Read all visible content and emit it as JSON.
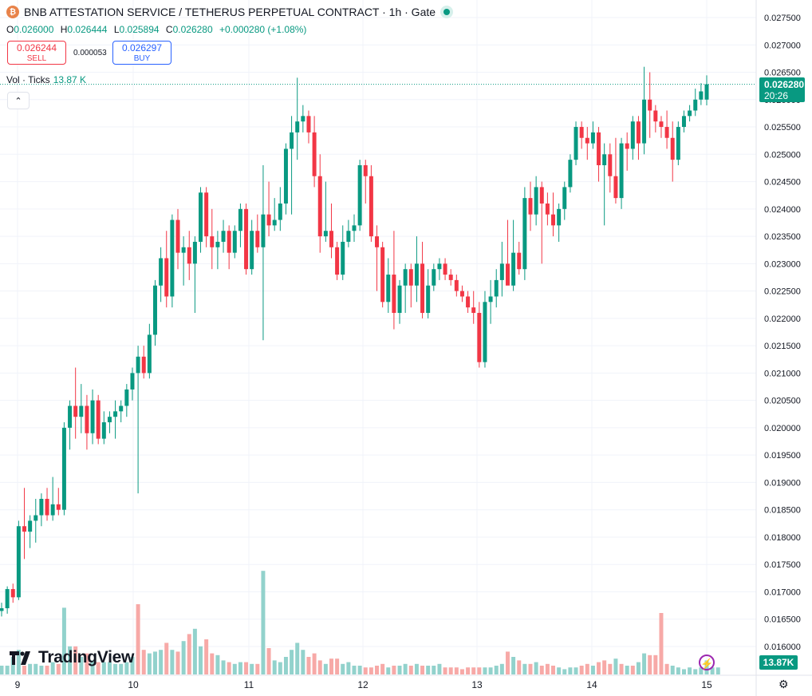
{
  "header": {
    "title": "BNB ATTESTATION SERVICE / TETHERUS PERPETUAL CONTRACT · 1h · Gate",
    "coin_icon": "bnb-coin-icon"
  },
  "ohlc": {
    "o_label": "O",
    "o": "0.026000",
    "h_label": "H",
    "h": "0.026444",
    "l_label": "L",
    "l": "0.025894",
    "c_label": "C",
    "c": "0.026280",
    "change": "+0.000280 (+1.08%)"
  },
  "trade": {
    "sell_price": "0.026244",
    "sell_label": "SELL",
    "spread": "0.000053",
    "buy_price": "0.026297",
    "buy_label": "BUY"
  },
  "volume_legend": {
    "label": "Vol · Ticks",
    "value": "13.87 K"
  },
  "price_tag": {
    "price": "0.026280",
    "countdown": "20:26"
  },
  "volume_tag": "13.87K",
  "brand": "TradingView",
  "colors": {
    "up": "#089981",
    "down": "#f23645",
    "up_vol": "#92d2cc",
    "down_vol": "#f7a9a7",
    "grid": "#f0f3fa"
  },
  "chart_data": {
    "type": "candlestick",
    "y_ticks": [
      "0.027500",
      "0.027000",
      "0.026500",
      "0.026000",
      "0.025500",
      "0.025000",
      "0.024500",
      "0.024000",
      "0.023500",
      "0.023000",
      "0.022500",
      "0.022000",
      "0.021500",
      "0.021000",
      "0.020500",
      "0.020000",
      "0.019500",
      "0.019000",
      "0.018500",
      "0.018000",
      "0.017500",
      "0.017000",
      "0.016500",
      "0.016000"
    ],
    "ylim": [
      0.0159,
      0.0277
    ],
    "x_ticks": [
      "9",
      "10",
      "11",
      "12",
      "13",
      "14",
      "15"
    ],
    "last_price": 0.02628,
    "grid": true,
    "candles": [
      {
        "o": 0.01665,
        "h": 0.0168,
        "l": 0.01655,
        "c": 0.0167
      },
      {
        "o": 0.0167,
        "h": 0.0171,
        "l": 0.0166,
        "c": 0.01705
      },
      {
        "o": 0.01705,
        "h": 0.01715,
        "l": 0.0168,
        "c": 0.0169
      },
      {
        "o": 0.0169,
        "h": 0.0183,
        "l": 0.01685,
        "c": 0.0182
      },
      {
        "o": 0.0182,
        "h": 0.0189,
        "l": 0.0176,
        "c": 0.0181
      },
      {
        "o": 0.0181,
        "h": 0.0184,
        "l": 0.0178,
        "c": 0.0183
      },
      {
        "o": 0.0183,
        "h": 0.0187,
        "l": 0.0179,
        "c": 0.0184
      },
      {
        "o": 0.0184,
        "h": 0.0188,
        "l": 0.0182,
        "c": 0.0187
      },
      {
        "o": 0.0187,
        "h": 0.0189,
        "l": 0.0183,
        "c": 0.0184
      },
      {
        "o": 0.0184,
        "h": 0.0191,
        "l": 0.0183,
        "c": 0.0186
      },
      {
        "o": 0.0186,
        "h": 0.0189,
        "l": 0.0184,
        "c": 0.0185
      },
      {
        "o": 0.0185,
        "h": 0.0201,
        "l": 0.0184,
        "c": 0.02
      },
      {
        "o": 0.02,
        "h": 0.0205,
        "l": 0.0196,
        "c": 0.0204
      },
      {
        "o": 0.0204,
        "h": 0.0211,
        "l": 0.0198,
        "c": 0.0202
      },
      {
        "o": 0.0202,
        "h": 0.0208,
        "l": 0.0199,
        "c": 0.0204
      },
      {
        "o": 0.0204,
        "h": 0.0206,
        "l": 0.0196,
        "c": 0.0199
      },
      {
        "o": 0.0199,
        "h": 0.0207,
        "l": 0.0197,
        "c": 0.0205
      },
      {
        "o": 0.0205,
        "h": 0.0206,
        "l": 0.0197,
        "c": 0.0198
      },
      {
        "o": 0.0198,
        "h": 0.0203,
        "l": 0.0197,
        "c": 0.0201
      },
      {
        "o": 0.0201,
        "h": 0.0203,
        "l": 0.0199,
        "c": 0.0202
      },
      {
        "o": 0.0202,
        "h": 0.0205,
        "l": 0.0198,
        "c": 0.0203
      },
      {
        "o": 0.0203,
        "h": 0.0205,
        "l": 0.0201,
        "c": 0.0204
      },
      {
        "o": 0.0204,
        "h": 0.0208,
        "l": 0.0202,
        "c": 0.0207
      },
      {
        "o": 0.0207,
        "h": 0.0211,
        "l": 0.0205,
        "c": 0.021
      },
      {
        "o": 0.021,
        "h": 0.0215,
        "l": 0.0188,
        "c": 0.0213
      },
      {
        "o": 0.0213,
        "h": 0.0215,
        "l": 0.0209,
        "c": 0.021
      },
      {
        "o": 0.021,
        "h": 0.0219,
        "l": 0.0209,
        "c": 0.0217
      },
      {
        "o": 0.0217,
        "h": 0.0227,
        "l": 0.0215,
        "c": 0.0226
      },
      {
        "o": 0.0226,
        "h": 0.0233,
        "l": 0.0223,
        "c": 0.0231
      },
      {
        "o": 0.0231,
        "h": 0.0236,
        "l": 0.0222,
        "c": 0.0224
      },
      {
        "o": 0.0224,
        "h": 0.0239,
        "l": 0.0222,
        "c": 0.0238
      },
      {
        "o": 0.0238,
        "h": 0.024,
        "l": 0.0229,
        "c": 0.0232
      },
      {
        "o": 0.0232,
        "h": 0.0235,
        "l": 0.0226,
        "c": 0.0233
      },
      {
        "o": 0.0233,
        "h": 0.0236,
        "l": 0.0227,
        "c": 0.023
      },
      {
        "o": 0.023,
        "h": 0.0235,
        "l": 0.0221,
        "c": 0.0234
      },
      {
        "o": 0.0234,
        "h": 0.0244,
        "l": 0.0232,
        "c": 0.0243
      },
      {
        "o": 0.0243,
        "h": 0.0244,
        "l": 0.0233,
        "c": 0.0235
      },
      {
        "o": 0.0235,
        "h": 0.024,
        "l": 0.0229,
        "c": 0.0233
      },
      {
        "o": 0.0233,
        "h": 0.0236,
        "l": 0.0229,
        "c": 0.0234
      },
      {
        "o": 0.0234,
        "h": 0.0238,
        "l": 0.0232,
        "c": 0.0236
      },
      {
        "o": 0.0236,
        "h": 0.0237,
        "l": 0.0229,
        "c": 0.0232
      },
      {
        "o": 0.0232,
        "h": 0.0237,
        "l": 0.0231,
        "c": 0.0236
      },
      {
        "o": 0.0236,
        "h": 0.0241,
        "l": 0.0233,
        "c": 0.024
      },
      {
        "o": 0.024,
        "h": 0.0241,
        "l": 0.0228,
        "c": 0.0229
      },
      {
        "o": 0.0229,
        "h": 0.0238,
        "l": 0.0228,
        "c": 0.0236
      },
      {
        "o": 0.0236,
        "h": 0.0239,
        "l": 0.0232,
        "c": 0.0233
      },
      {
        "o": 0.0233,
        "h": 0.0248,
        "l": 0.0216,
        "c": 0.0239
      },
      {
        "o": 0.0239,
        "h": 0.0245,
        "l": 0.0235,
        "c": 0.0237
      },
      {
        "o": 0.0237,
        "h": 0.0242,
        "l": 0.0236,
        "c": 0.0238
      },
      {
        "o": 0.0238,
        "h": 0.0244,
        "l": 0.0236,
        "c": 0.0241
      },
      {
        "o": 0.0241,
        "h": 0.0252,
        "l": 0.0239,
        "c": 0.0251
      },
      {
        "o": 0.0251,
        "h": 0.0257,
        "l": 0.0239,
        "c": 0.0254
      },
      {
        "o": 0.0254,
        "h": 0.0264,
        "l": 0.0249,
        "c": 0.0256
      },
      {
        "o": 0.0256,
        "h": 0.0259,
        "l": 0.0254,
        "c": 0.0257
      },
      {
        "o": 0.0257,
        "h": 0.0258,
        "l": 0.0252,
        "c": 0.0254
      },
      {
        "o": 0.0254,
        "h": 0.0257,
        "l": 0.0244,
        "c": 0.0246
      },
      {
        "o": 0.0246,
        "h": 0.025,
        "l": 0.0232,
        "c": 0.0235
      },
      {
        "o": 0.0235,
        "h": 0.0245,
        "l": 0.0234,
        "c": 0.0236
      },
      {
        "o": 0.0236,
        "h": 0.0241,
        "l": 0.0231,
        "c": 0.0233
      },
      {
        "o": 0.0233,
        "h": 0.0234,
        "l": 0.0227,
        "c": 0.0228
      },
      {
        "o": 0.0228,
        "h": 0.0237,
        "l": 0.0227,
        "c": 0.0234
      },
      {
        "o": 0.0234,
        "h": 0.0238,
        "l": 0.0233,
        "c": 0.0236
      },
      {
        "o": 0.0236,
        "h": 0.0239,
        "l": 0.0234,
        "c": 0.0237
      },
      {
        "o": 0.0237,
        "h": 0.0249,
        "l": 0.0236,
        "c": 0.0248
      },
      {
        "o": 0.0248,
        "h": 0.0249,
        "l": 0.0241,
        "c": 0.0246
      },
      {
        "o": 0.0246,
        "h": 0.0248,
        "l": 0.0234,
        "c": 0.0235
      },
      {
        "o": 0.0235,
        "h": 0.0237,
        "l": 0.0225,
        "c": 0.0233
      },
      {
        "o": 0.0233,
        "h": 0.0234,
        "l": 0.0222,
        "c": 0.0223
      },
      {
        "o": 0.0223,
        "h": 0.0231,
        "l": 0.0221,
        "c": 0.0228
      },
      {
        "o": 0.0228,
        "h": 0.0236,
        "l": 0.0218,
        "c": 0.0221
      },
      {
        "o": 0.0221,
        "h": 0.0227,
        "l": 0.0219,
        "c": 0.0226
      },
      {
        "o": 0.0226,
        "h": 0.023,
        "l": 0.0221,
        "c": 0.0229
      },
      {
        "o": 0.0229,
        "h": 0.023,
        "l": 0.0222,
        "c": 0.0226
      },
      {
        "o": 0.0226,
        "h": 0.0235,
        "l": 0.0223,
        "c": 0.023
      },
      {
        "o": 0.023,
        "h": 0.0234,
        "l": 0.022,
        "c": 0.0221
      },
      {
        "o": 0.0221,
        "h": 0.0229,
        "l": 0.022,
        "c": 0.0226
      },
      {
        "o": 0.0226,
        "h": 0.023,
        "l": 0.0225,
        "c": 0.0229
      },
      {
        "o": 0.0229,
        "h": 0.0231,
        "l": 0.0227,
        "c": 0.023
      },
      {
        "o": 0.023,
        "h": 0.0231,
        "l": 0.0227,
        "c": 0.0228
      },
      {
        "o": 0.0228,
        "h": 0.0229,
        "l": 0.0226,
        "c": 0.0227
      },
      {
        "o": 0.0227,
        "h": 0.0228,
        "l": 0.0224,
        "c": 0.0225
      },
      {
        "o": 0.0225,
        "h": 0.0226,
        "l": 0.0223,
        "c": 0.0224
      },
      {
        "o": 0.0224,
        "h": 0.0225,
        "l": 0.0221,
        "c": 0.0222
      },
      {
        "o": 0.0222,
        "h": 0.0225,
        "l": 0.0219,
        "c": 0.0221
      },
      {
        "o": 0.0221,
        "h": 0.0223,
        "l": 0.0211,
        "c": 0.0212
      },
      {
        "o": 0.0212,
        "h": 0.0225,
        "l": 0.0211,
        "c": 0.0223
      },
      {
        "o": 0.0223,
        "h": 0.0227,
        "l": 0.0219,
        "c": 0.0224
      },
      {
        "o": 0.0224,
        "h": 0.0229,
        "l": 0.0222,
        "c": 0.0227
      },
      {
        "o": 0.0227,
        "h": 0.0234,
        "l": 0.0224,
        "c": 0.023
      },
      {
        "o": 0.023,
        "h": 0.0238,
        "l": 0.0227,
        "c": 0.0226
      },
      {
        "o": 0.0226,
        "h": 0.0238,
        "l": 0.0225,
        "c": 0.0232
      },
      {
        "o": 0.0232,
        "h": 0.0234,
        "l": 0.0228,
        "c": 0.0229
      },
      {
        "o": 0.0229,
        "h": 0.0244,
        "l": 0.0227,
        "c": 0.0242
      },
      {
        "o": 0.0242,
        "h": 0.0245,
        "l": 0.0236,
        "c": 0.0239
      },
      {
        "o": 0.0239,
        "h": 0.0246,
        "l": 0.0237,
        "c": 0.0244
      },
      {
        "o": 0.0244,
        "h": 0.0245,
        "l": 0.023,
        "c": 0.0241
      },
      {
        "o": 0.0241,
        "h": 0.0243,
        "l": 0.0237,
        "c": 0.0239
      },
      {
        "o": 0.0239,
        "h": 0.0243,
        "l": 0.0235,
        "c": 0.0237
      },
      {
        "o": 0.0237,
        "h": 0.0241,
        "l": 0.0234,
        "c": 0.024
      },
      {
        "o": 0.024,
        "h": 0.0245,
        "l": 0.0238,
        "c": 0.0244
      },
      {
        "o": 0.0244,
        "h": 0.025,
        "l": 0.0243,
        "c": 0.0249
      },
      {
        "o": 0.0249,
        "h": 0.0256,
        "l": 0.0248,
        "c": 0.0255
      },
      {
        "o": 0.0255,
        "h": 0.0256,
        "l": 0.0251,
        "c": 0.0253
      },
      {
        "o": 0.0253,
        "h": 0.0255,
        "l": 0.0249,
        "c": 0.0252
      },
      {
        "o": 0.0252,
        "h": 0.0256,
        "l": 0.0251,
        "c": 0.0254
      },
      {
        "o": 0.0254,
        "h": 0.0255,
        "l": 0.0245,
        "c": 0.0248
      },
      {
        "o": 0.0248,
        "h": 0.0252,
        "l": 0.0237,
        "c": 0.025
      },
      {
        "o": 0.025,
        "h": 0.0252,
        "l": 0.0243,
        "c": 0.0246
      },
      {
        "o": 0.0246,
        "h": 0.0253,
        "l": 0.0241,
        "c": 0.0242
      },
      {
        "o": 0.0242,
        "h": 0.0253,
        "l": 0.024,
        "c": 0.0252
      },
      {
        "o": 0.0252,
        "h": 0.0254,
        "l": 0.0247,
        "c": 0.0251
      },
      {
        "o": 0.0251,
        "h": 0.0257,
        "l": 0.0249,
        "c": 0.0256
      },
      {
        "o": 0.0256,
        "h": 0.0257,
        "l": 0.0249,
        "c": 0.0252
      },
      {
        "o": 0.0252,
        "h": 0.0266,
        "l": 0.025,
        "c": 0.026
      },
      {
        "o": 0.026,
        "h": 0.0265,
        "l": 0.0253,
        "c": 0.0258
      },
      {
        "o": 0.0258,
        "h": 0.0259,
        "l": 0.0254,
        "c": 0.0256
      },
      {
        "o": 0.0256,
        "h": 0.0257,
        "l": 0.0253,
        "c": 0.0255
      },
      {
        "o": 0.0255,
        "h": 0.0258,
        "l": 0.0251,
        "c": 0.0253
      },
      {
        "o": 0.0253,
        "h": 0.0256,
        "l": 0.0245,
        "c": 0.0249
      },
      {
        "o": 0.0249,
        "h": 0.0256,
        "l": 0.0248,
        "c": 0.0255
      },
      {
        "o": 0.0255,
        "h": 0.0258,
        "l": 0.0254,
        "c": 0.0257
      },
      {
        "o": 0.0257,
        "h": 0.0259,
        "l": 0.0256,
        "c": 0.0258
      },
      {
        "o": 0.0258,
        "h": 0.0262,
        "l": 0.0257,
        "c": 0.026
      },
      {
        "o": 0.026,
        "h": 0.0263,
        "l": 0.0259,
        "c": 0.02615
      },
      {
        "o": 0.026,
        "h": 0.026444,
        "l": 0.025894,
        "c": 0.02628
      }
    ],
    "volume": [
      0.05,
      0.05,
      0.1,
      0.14,
      0.05,
      0.06,
      0.06,
      0.05,
      0.05,
      0.07,
      0.06,
      0.38,
      0.16,
      0.16,
      0.1,
      0.12,
      0.08,
      0.07,
      0.07,
      0.07,
      0.06,
      0.06,
      0.07,
      0.1,
      0.4,
      0.14,
      0.12,
      0.13,
      0.14,
      0.18,
      0.14,
      0.13,
      0.19,
      0.23,
      0.26,
      0.16,
      0.2,
      0.12,
      0.11,
      0.08,
      0.07,
      0.06,
      0.07,
      0.07,
      0.06,
      0.06,
      0.59,
      0.15,
      0.08,
      0.07,
      0.1,
      0.14,
      0.18,
      0.14,
      0.1,
      0.12,
      0.08,
      0.06,
      0.09,
      0.09,
      0.06,
      0.07,
      0.05,
      0.05,
      0.04,
      0.04,
      0.05,
      0.06,
      0.04,
      0.05,
      0.05,
      0.06,
      0.05,
      0.06,
      0.05,
      0.05,
      0.05,
      0.06,
      0.04,
      0.04,
      0.04,
      0.03,
      0.04,
      0.04,
      0.04,
      0.04,
      0.04,
      0.05,
      0.06,
      0.13,
      0.1,
      0.08,
      0.06,
      0.06,
      0.07,
      0.05,
      0.06,
      0.05,
      0.04,
      0.03,
      0.04,
      0.04,
      0.05,
      0.06,
      0.05,
      0.07,
      0.08,
      0.06,
      0.09,
      0.06,
      0.05,
      0.05,
      0.07,
      0.12,
      0.11,
      0.11,
      0.35,
      0.06,
      0.05,
      0.04,
      0.03,
      0.04,
      0.03,
      0.04,
      0.08,
      0.04,
      0.04
    ],
    "volume_up": [
      true,
      true,
      true,
      true,
      false,
      true,
      true,
      true,
      false,
      true,
      false,
      true,
      true,
      false,
      true,
      false,
      true,
      false,
      true,
      true,
      true,
      true,
      true,
      true,
      false,
      false,
      true,
      true,
      true,
      false,
      true,
      false,
      true,
      false,
      true,
      true,
      false,
      false,
      true,
      true,
      false,
      true,
      true,
      false,
      true,
      false,
      true,
      false,
      true,
      true,
      true,
      true,
      true,
      true,
      false,
      false,
      false,
      true,
      false,
      false,
      true,
      true,
      true,
      true,
      false,
      false,
      false,
      false,
      true,
      false,
      true,
      true,
      false,
      true,
      false,
      true,
      true,
      true,
      false,
      false,
      false,
      false,
      false,
      false,
      false,
      true,
      true,
      true,
      true,
      false,
      true,
      false,
      true,
      false,
      true,
      false,
      false,
      false,
      true,
      true,
      true,
      true,
      false,
      false,
      true,
      false,
      false,
      false,
      true,
      false,
      true,
      false,
      true,
      true,
      false,
      false,
      false,
      false,
      true,
      true,
      true,
      true,
      true,
      true,
      true
    ],
    "volume_tick_label": "13.87K"
  }
}
